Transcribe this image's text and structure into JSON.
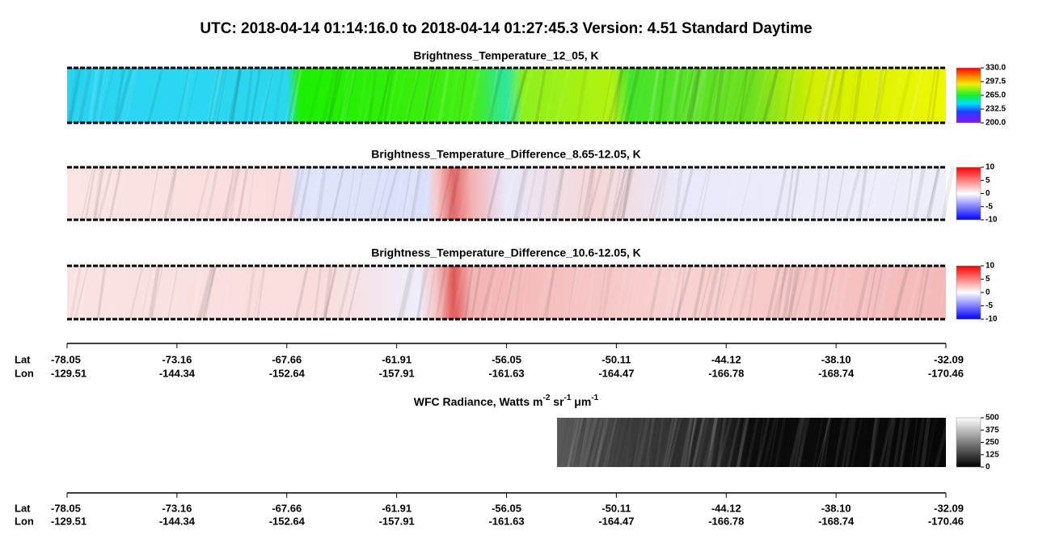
{
  "title": "UTC:  2018-04-14   01:14:16.0  to  2018-04-14   01:27:45.3    Version: 4.51  Standard Daytime",
  "chart_data": [
    {
      "type": "image",
      "title": "Brightness_Temperature_12_05, K",
      "clim": [
        {
          "value": 200,
          "label": "200.0"
        },
        {
          "value": 330,
          "label": "330.0"
        }
      ],
      "cticks": [
        {
          "value": 330,
          "label": "330.0"
        },
        297.5,
        {
          "value": 265,
          "label": "265.0"
        },
        232.5,
        {
          "value": 200,
          "label": "200.0"
        }
      ]
    },
    {
      "type": "image",
      "title": "Brightness_Temperature_Difference_8.65-12.05, K",
      "clim": [
        -10,
        10
      ],
      "cticks": [
        10,
        5,
        0,
        -5,
        -10
      ]
    },
    {
      "type": "image",
      "title": "Brightness_Temperature_Difference_10.6-12.05, K",
      "clim": [
        -10,
        10
      ],
      "cticks": [
        10,
        5,
        0,
        -5,
        -10
      ]
    },
    {
      "type": "image",
      "title": [
        "WFC Radiance, Watts m",
        "-2",
        " sr",
        "-1",
        " μm",
        "-1"
      ],
      "clim": [
        0,
        500
      ],
      "cticks": [
        500,
        375,
        250,
        125,
        0
      ]
    }
  ],
  "axis": {
    "lat_label": "Lat",
    "lon_label": "Lon",
    "lat": [
      -78.05,
      -73.16,
      -67.66,
      -61.91,
      -56.05,
      -50.11,
      -44.12,
      {
        "value": -38.1,
        "label": "-38.10"
      },
      -32.09
    ],
    "lon": [
      -129.51,
      -144.34,
      -152.64,
      -157.91,
      -161.63,
      -164.47,
      -166.78,
      -168.74,
      -170.46
    ]
  }
}
